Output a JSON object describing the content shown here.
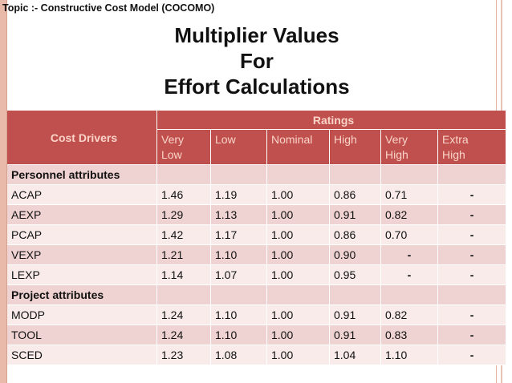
{
  "topic": "Topic :- Constructive Cost Model (COCOMO)",
  "title": {
    "line1": "Multiplier Values",
    "line2": "For",
    "line3": "Effort Calculations"
  },
  "table": {
    "cost_drivers_label": "Cost Drivers",
    "ratings_label": "Ratings",
    "rating_headers": [
      {
        "line1": "Very",
        "line2": "Low"
      },
      {
        "line1": "Low",
        "line2": ""
      },
      {
        "line1": "Nominal",
        "line2": ""
      },
      {
        "line1": "High",
        "line2": ""
      },
      {
        "line1": "Very",
        "line2": "High"
      },
      {
        "line1": "Extra",
        "line2": "High"
      }
    ],
    "sections": [
      {
        "title": "Personnel attributes",
        "rows": [
          {
            "driver": "ACAP",
            "values": [
              "1.46",
              "1.19",
              "1.00",
              "0.86",
              "0.71",
              "-"
            ]
          },
          {
            "driver": "AEXP",
            "values": [
              "1.29",
              "1.13",
              "1.00",
              "0.91",
              "0.82",
              "-"
            ]
          },
          {
            "driver": "PCAP",
            "values": [
              "1.42",
              "1.17",
              "1.00",
              "0.86",
              "0.70",
              "-"
            ]
          },
          {
            "driver": "VEXP",
            "values": [
              "1.21",
              "1.10",
              "1.00",
              "0.90",
              "-",
              "-"
            ]
          },
          {
            "driver": "LEXP",
            "values": [
              "1.14",
              "1.07",
              "1.00",
              "0.95",
              "-",
              "-"
            ]
          }
        ]
      },
      {
        "title": "Project attributes",
        "rows": [
          {
            "driver": "MODP",
            "values": [
              "1.24",
              "1.10",
              "1.00",
              "0.91",
              "0.82",
              "-"
            ]
          },
          {
            "driver": "TOOL",
            "values": [
              "1.24",
              "1.10",
              "1.00",
              "0.91",
              "0.83",
              "-"
            ]
          },
          {
            "driver": "SCED",
            "values": [
              "1.23",
              "1.08",
              "1.00",
              "1.04",
              "1.10",
              "-"
            ]
          }
        ]
      }
    ]
  }
}
